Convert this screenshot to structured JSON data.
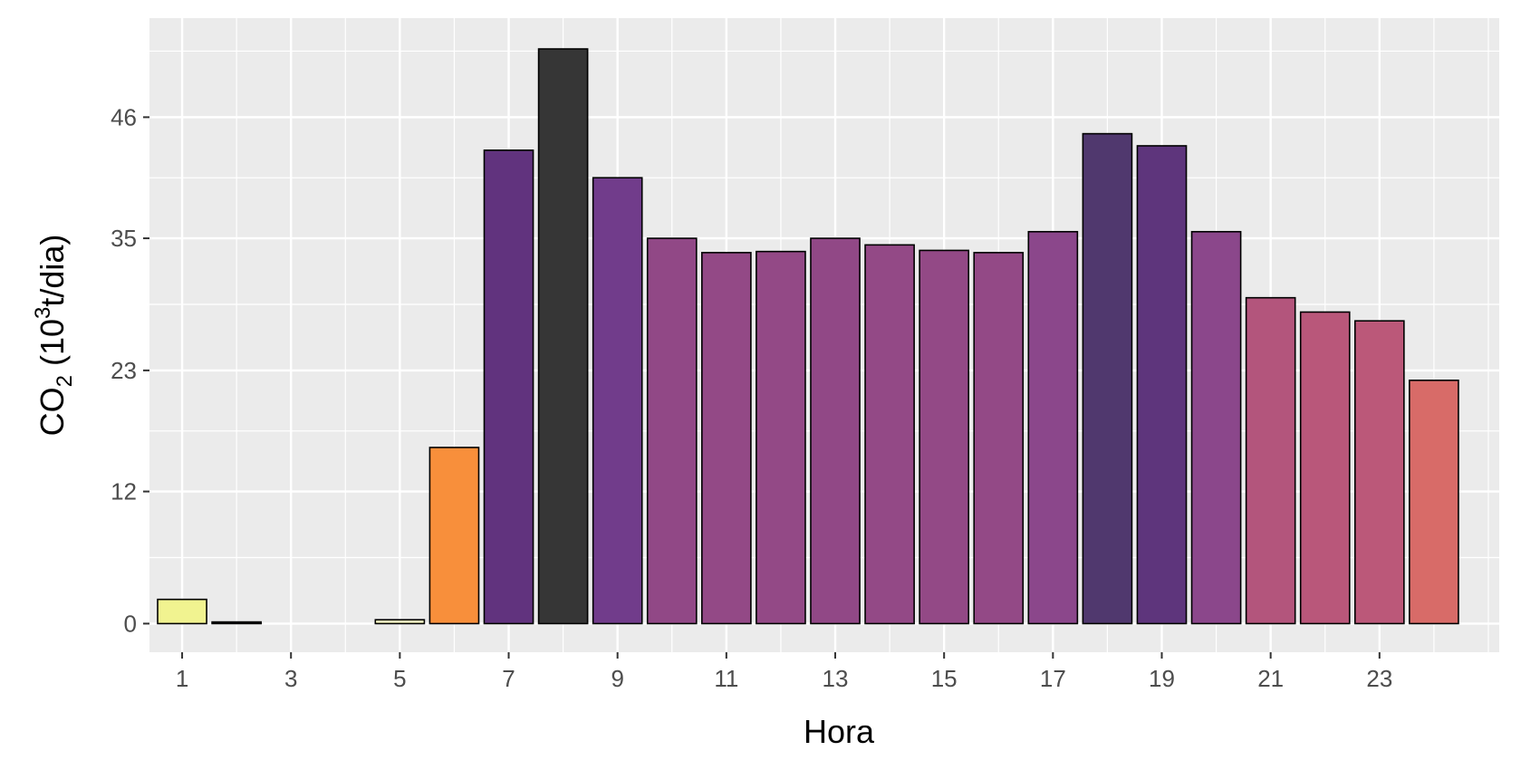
{
  "chart_data": {
    "type": "bar",
    "xlabel": "Hora",
    "ylabel": {
      "prefix": "CO",
      "subscript": "2",
      "middle": " (10",
      "superscript": "3",
      "suffix": "t/dia)"
    },
    "x": [
      1,
      2,
      3,
      4,
      5,
      6,
      7,
      8,
      9,
      10,
      11,
      12,
      13,
      14,
      15,
      16,
      17,
      18,
      19,
      20,
      21,
      22,
      23,
      24
    ],
    "values": [
      2.2,
      0.15,
      0,
      0,
      0.35,
      16.0,
      43.0,
      52.2,
      40.5,
      35.0,
      33.7,
      33.8,
      35.0,
      34.4,
      33.9,
      33.7,
      35.6,
      44.5,
      43.4,
      35.6,
      29.6,
      28.3,
      27.5,
      22.1
    ],
    "colors": [
      "#f1f38c",
      "#000004",
      "#000004",
      "#000004",
      "#fcfdbf",
      "#f88b35",
      "#5c2c7a",
      "#303030",
      "#6c3687",
      "#8d4282",
      "#8f4382",
      "#8f4382",
      "#8d4282",
      "#8f4382",
      "#8f4382",
      "#8f4382",
      "#874187",
      "#4a3269",
      "#592e78",
      "#874187",
      "#b14f78",
      "#b75276",
      "#b95375",
      "#d76663"
    ],
    "xticks": [
      "1",
      "3",
      "5",
      "7",
      "9",
      "11",
      "13",
      "15",
      "17",
      "19",
      "21",
      "23"
    ],
    "yticks": [
      "0",
      "12",
      "23",
      "35",
      "46"
    ],
    "xlim": [
      0.4,
      25.2
    ],
    "ylim": [
      -2.6,
      55
    ],
    "grid": true,
    "legend": "none"
  }
}
